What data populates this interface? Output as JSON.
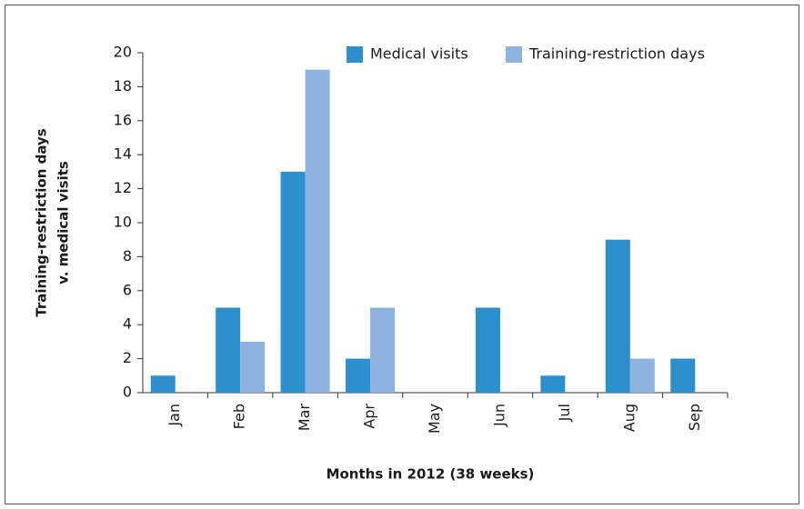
{
  "chart_data": {
    "type": "bar",
    "xlabel": "Months in 2012 (38 weeks)",
    "ylabel": [
      "Training-restriction days",
      "v. medical visits"
    ],
    "categories": [
      "Jan",
      "Feb",
      "Mar",
      "Apr",
      "May",
      "Jun",
      "Jul",
      "Aug",
      "Sep"
    ],
    "series": [
      {
        "name": "Medical visits",
        "color": "#2e8fce",
        "values": [
          1,
          5,
          13,
          2,
          0,
          5,
          1,
          9,
          2
        ]
      },
      {
        "name": "Training-restriction days",
        "color": "#8db4e0",
        "values": [
          0,
          3,
          19,
          5,
          0,
          0,
          0,
          2,
          0
        ]
      }
    ],
    "ylim": [
      0,
      20
    ],
    "yticks": [
      0,
      2,
      4,
      6,
      8,
      10,
      12,
      14,
      16,
      18,
      20
    ],
    "grid": false,
    "legend": "top"
  }
}
